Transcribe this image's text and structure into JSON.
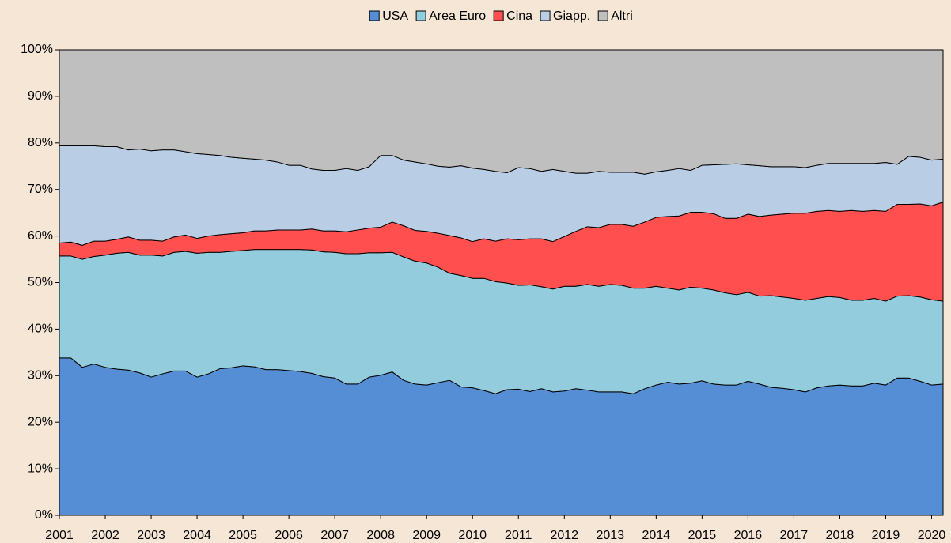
{
  "chart_data": {
    "type": "stacked_area",
    "x": [
      2001,
      2001.25,
      2001.5,
      2001.75,
      2002,
      2002.25,
      2002.5,
      2002.75,
      2003,
      2003.25,
      2003.5,
      2003.75,
      2004,
      2004.25,
      2004.5,
      2004.75,
      2005,
      2005.25,
      2005.5,
      2005.75,
      2006,
      2006.25,
      2006.5,
      2006.75,
      2007,
      2007.25,
      2007.5,
      2007.75,
      2008,
      2008.25,
      2008.5,
      2008.75,
      2009,
      2009.25,
      2009.5,
      2009.75,
      2010,
      2010.25,
      2010.5,
      2010.75,
      2011,
      2011.25,
      2011.5,
      2011.75,
      2012,
      2012.25,
      2012.5,
      2012.75,
      2013,
      2013.25,
      2013.5,
      2013.75,
      2014,
      2014.25,
      2014.5,
      2014.75,
      2015,
      2015.25,
      2015.5,
      2015.75,
      2016,
      2016.25,
      2016.5,
      2016.75,
      2017,
      2017.25,
      2017.5,
      2017.75,
      2018,
      2018.25,
      2018.5,
      2018.75,
      2019,
      2019.25,
      2019.5,
      2019.75,
      2020,
      2020.25
    ],
    "series": [
      {
        "name": "USA",
        "color": "#558ed5",
        "values": [
          33.8,
          33.8,
          31.8,
          32.5,
          31.8,
          31.4,
          31.2,
          30.6,
          29.7,
          30.4,
          31.0,
          31.0,
          29.7,
          30.4,
          31.5,
          31.7,
          32.1,
          31.9,
          31.3,
          31.3,
          31.1,
          30.9,
          30.5,
          29.8,
          29.5,
          28.2,
          28.2,
          29.7,
          30.1,
          30.8,
          29.0,
          28.2,
          28.0,
          28.5,
          29.0,
          27.6,
          27.4,
          26.8,
          26.1,
          27.0,
          27.1,
          26.6,
          27.2,
          26.5,
          26.7,
          27.2,
          26.9,
          26.5,
          26.5,
          26.5,
          26.1,
          27.2,
          28.0,
          28.6,
          28.2,
          28.4,
          28.9,
          28.2,
          28.0,
          28.0,
          28.8,
          28.2,
          27.5,
          27.3,
          27.0,
          26.5,
          27.4,
          27.8,
          28.0,
          27.8,
          27.8,
          28.4,
          28.0,
          29.5,
          29.5,
          28.8,
          28.0,
          28.2
        ]
      },
      {
        "name": "Area Euro",
        "color": "#93cddd",
        "values": [
          21.9,
          21.9,
          23.2,
          23.1,
          24.1,
          24.9,
          25.3,
          25.3,
          26.2,
          25.3,
          25.5,
          25.7,
          26.6,
          26.1,
          25.0,
          25.0,
          24.8,
          25.2,
          25.8,
          25.8,
          26.0,
          26.2,
          26.5,
          26.8,
          27.0,
          28.0,
          28.0,
          26.7,
          26.3,
          25.7,
          26.5,
          26.4,
          26.2,
          24.8,
          23.0,
          23.9,
          23.5,
          24.1,
          24.1,
          22.9,
          22.3,
          22.9,
          21.9,
          22.1,
          22.5,
          22.0,
          22.7,
          22.7,
          23.1,
          22.9,
          22.7,
          21.6,
          21.2,
          20.2,
          20.2,
          20.6,
          19.9,
          20.2,
          19.8,
          19.4,
          19.1,
          18.9,
          19.7,
          19.6,
          19.6,
          19.7,
          19.2,
          19.2,
          18.8,
          18.4,
          18.4,
          18.2,
          18.0,
          17.6,
          17.7,
          18.1,
          18.3,
          17.8
        ]
      },
      {
        "name": "Cina",
        "color": "#ff4f4f",
        "values": [
          2.8,
          3.0,
          3.0,
          3.3,
          3.0,
          3.0,
          3.3,
          3.2,
          3.2,
          3.2,
          3.3,
          3.5,
          3.2,
          3.5,
          3.8,
          3.8,
          3.8,
          4.0,
          4.0,
          4.2,
          4.2,
          4.2,
          4.5,
          4.5,
          4.6,
          4.7,
          5.1,
          5.3,
          5.5,
          6.5,
          6.7,
          6.6,
          6.8,
          7.3,
          8.1,
          8.1,
          7.9,
          8.5,
          8.7,
          9.5,
          9.8,
          9.9,
          10.3,
          10.2,
          10.7,
          11.8,
          12.4,
          12.6,
          12.9,
          13.1,
          13.3,
          14.2,
          14.8,
          15.4,
          15.9,
          16.1,
          16.3,
          16.4,
          16.0,
          16.4,
          16.8,
          17.1,
          17.3,
          17.8,
          18.3,
          18.7,
          18.7,
          18.5,
          18.5,
          19.3,
          19.1,
          18.9,
          19.3,
          19.7,
          19.6,
          20.0,
          20.2,
          21.3
        ]
      },
      {
        "name": "Giapp.",
        "color": "#b9cde5",
        "values": [
          20.9,
          20.7,
          21.4,
          20.5,
          20.3,
          19.9,
          18.7,
          19.6,
          19.2,
          19.6,
          18.7,
          17.9,
          18.2,
          17.5,
          17.0,
          16.4,
          16.0,
          15.4,
          15.2,
          14.6,
          13.9,
          13.9,
          12.9,
          13.0,
          13.0,
          13.6,
          12.8,
          13.2,
          15.4,
          14.3,
          14.1,
          14.7,
          14.5,
          14.4,
          14.7,
          15.5,
          15.8,
          14.9,
          15.0,
          14.2,
          15.5,
          15.1,
          14.5,
          15.5,
          14.0,
          12.5,
          11.5,
          12.1,
          11.2,
          11.2,
          11.6,
          10.3,
          9.8,
          9.9,
          10.2,
          9.0,
          10.1,
          10.5,
          11.6,
          11.7,
          10.6,
          10.9,
          10.4,
          10.2,
          10.0,
          9.8,
          9.9,
          10.1,
          10.3,
          10.1,
          10.3,
          10.1,
          10.5,
          8.6,
          10.3,
          10.0,
          9.8,
          9.2
        ]
      },
      {
        "name": "Altri",
        "color": "#bfbfbf",
        "values": [
          20.6,
          20.6,
          20.6,
          20.6,
          20.8,
          20.8,
          21.5,
          21.3,
          21.7,
          21.5,
          21.5,
          21.9,
          22.3,
          22.5,
          22.7,
          23.1,
          23.3,
          23.5,
          23.7,
          24.1,
          24.8,
          24.8,
          25.6,
          25.9,
          25.9,
          25.5,
          25.9,
          25.1,
          22.7,
          22.7,
          23.7,
          24.1,
          24.5,
          25.0,
          25.2,
          24.9,
          25.4,
          25.7,
          26.1,
          26.4,
          25.3,
          25.5,
          26.1,
          25.7,
          26.1,
          26.5,
          26.5,
          26.1,
          26.3,
          26.3,
          26.3,
          26.7,
          26.2,
          25.9,
          25.5,
          25.9,
          24.8,
          24.7,
          24.6,
          24.5,
          24.7,
          24.9,
          25.1,
          25.1,
          25.1,
          25.3,
          24.8,
          24.4,
          24.4,
          24.4,
          24.4,
          24.4,
          24.2,
          24.6,
          22.9,
          23.1,
          23.7,
          23.5
        ]
      }
    ],
    "xlim": [
      2001,
      2020.25
    ],
    "xticks": [
      2001,
      2002,
      2003,
      2004,
      2005,
      2006,
      2007,
      2008,
      2009,
      2010,
      2011,
      2012,
      2013,
      2014,
      2015,
      2016,
      2017,
      2018,
      2019,
      2020
    ],
    "ylim": [
      0,
      100
    ],
    "yticks": [
      {
        "value": 0,
        "label": "0%"
      },
      {
        "value": 10,
        "label": "10%"
      },
      {
        "value": 20,
        "label": "20%"
      },
      {
        "value": 30,
        "label": "30%"
      },
      {
        "value": 40,
        "label": "40%"
      },
      {
        "value": 50,
        "label": "50%"
      },
      {
        "value": 60,
        "label": "60%"
      },
      {
        "value": 70,
        "label": "70%"
      },
      {
        "value": 80,
        "label": "80%"
      },
      {
        "value": 90,
        "label": "90%"
      },
      {
        "value": 100,
        "label": "100%"
      }
    ],
    "legend": "top"
  }
}
